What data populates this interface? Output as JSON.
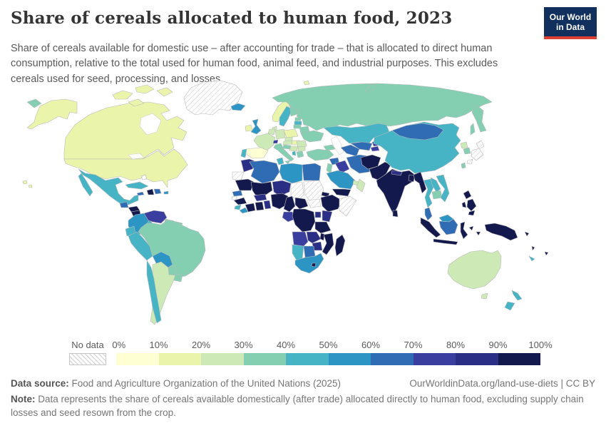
{
  "header": {
    "title": "Share of cereals allocated to human food, 2023",
    "subtitle": "Share of cereals available for domestic use – after accounting for trade – that is allocated to direct human consumption, relative to the total used for human food, animal feed, and industrial purposes. This excludes cereals used for seed, processing, and losses.",
    "logo": {
      "line1": "Our World",
      "line2": "in Data",
      "bg_color": "#12305e",
      "accent_color": "#dc3f34"
    }
  },
  "chart_data": {
    "type": "heatmap",
    "subtype": "choropleth-world-map",
    "title": "Share of cereals allocated to human food",
    "year": "2023",
    "unit": "%",
    "legend": {
      "no_data_label": "No data",
      "tick_labels": [
        "0%",
        "10%",
        "20%",
        "30%",
        "40%",
        "50%",
        "60%",
        "70%",
        "80%",
        "90%",
        "100%"
      ],
      "bucket_ranges": [
        "0-10%",
        "10-20%",
        "20-30%",
        "30-40%",
        "40-50%",
        "50-60%",
        "60-70%",
        "70-80%",
        "80-90%",
        "90-100%"
      ],
      "bucket_colors": [
        "#feffd3",
        "#eaf5ab",
        "#cdeab6",
        "#84cfb2",
        "#46b4c5",
        "#2d95c4",
        "#2f6cb3",
        "#3a3f9f",
        "#2a2e85",
        "#13194d"
      ],
      "no_data_pattern_color": "#d2d2d2"
    },
    "countries": {
      "canada": 1,
      "arctic-islands": 1,
      "alaska": 1,
      "usa": 1,
      "hawaii": 1,
      "greenland": "nd",
      "mexico": 4,
      "guatemala": 6,
      "honduras": 9,
      "nicaragua": 9,
      "costa-rica": 4,
      "panama": 4,
      "cuba": 4,
      "jamaica": 6,
      "haiti": 9,
      "dominican-republic": 6,
      "puerto-rico": 5,
      "bahamas": "nd",
      "colombia": 5,
      "venezuela": 7,
      "guyana": 3,
      "suriname": 5,
      "french-guiana": 3,
      "ecuador": 4,
      "peru": 4,
      "brazil": 3,
      "bolivia": 5,
      "paraguay": 3,
      "chile": 4,
      "argentina": 2,
      "uruguay": 3,
      "iceland": 5,
      "ireland": 1,
      "uk": 5,
      "norway": 1,
      "svalbard": 1,
      "sweden": 4,
      "finland": 3,
      "denmark": 2,
      "estonia": 3,
      "latvia": 4,
      "lithuania": 3,
      "poland": 1,
      "germany": 2,
      "benelux": 2,
      "france": 2,
      "spain": 0,
      "portugal": 4,
      "switzerland": 7,
      "czechia": 2,
      "austria": 2,
      "hungary": 1,
      "italy": 3,
      "sicily": 3,
      "slovenia-croatia": 3,
      "serbia-bosnia": 2,
      "albania": 4,
      "greece": 3,
      "bulgaria": 2,
      "romania": 2,
      "belarus": 3,
      "ukraine": 3,
      "russia": 3,
      "novaya-zemlya": 3,
      "kazakhstan": 4,
      "georgia-azerbaijan": 3,
      "turkmenistan": 6,
      "uzbekistan": 6,
      "kyrgyzstan": 7,
      "tajikistan": 7,
      "turkey": 3,
      "syria": 6,
      "israel-jordan": 3,
      "iraq": 7,
      "iran": 6,
      "saudi-arabia": 5,
      "uae": 2,
      "oman": 2,
      "yemen": 9,
      "afghanistan": 9,
      "pakistan": 9,
      "india": 9,
      "nepal": 8,
      "bangladesh": 9,
      "sri-lanka": 9,
      "china": 4,
      "mongolia": 6,
      "north-korea": 2,
      "south-korea": 3,
      "japan": "nd",
      "taiwan": 3,
      "myanmar": 9,
      "thailand": 4,
      "laos": 4,
      "cambodia": 3,
      "vietnam": 4,
      "malaysia": 6,
      "sumatra": 9,
      "java": 9,
      "borneo-malaysia": 5,
      "borneo-indonesia": 6,
      "sulawesi": 9,
      "maluku": 9,
      "new-guinea": 9,
      "philippines": 9,
      "solomon-islands": 9,
      "vanuatu": 9,
      "fiji": 9,
      "new-caledonia": 4,
      "australia": 2,
      "tasmania": 2,
      "new-zealand": 4,
      "morocco": 8,
      "western-sahara": "nd",
      "algeria": 6,
      "tunisia": 4,
      "libya": 5,
      "egypt": 6,
      "mauritania": 9,
      "mali": 9,
      "niger": 8,
      "chad": "nd",
      "sudan": "nd",
      "south-sudan": "nd",
      "eritrea": 9,
      "ethiopia": 9,
      "somalia": "nd",
      "senegal": 6,
      "guinea-bissau": "nd",
      "guinea": 9,
      "sierra-leone": 4,
      "liberia": 5,
      "ivory-coast": 9,
      "ghana": 9,
      "togo-benin": 8,
      "burkina-faso": 8,
      "nigeria": 9,
      "cameroon": 9,
      "central-african-republic": 9,
      "gabon-congo": 7,
      "drc": 9,
      "uganda": 8,
      "kenya": 8,
      "tanzania": 9,
      "angola": 7,
      "zambia": 8,
      "malawi": 9,
      "mozambique": 9,
      "zimbabwe": 8,
      "botswana": 6,
      "namibia": 4,
      "south-africa": 5,
      "lesotho": 9,
      "madagascar": 9
    }
  },
  "footer": {
    "source_label": "Data source:",
    "source_text": "Food and Agriculture Organization of the United Nations (2025)",
    "link_text": "OurWorldinData.org/land-use-diets | CC BY",
    "note_label": "Note:",
    "note_text": "Data represents the share of cereals available domestically (after trade) allocated directly to human food, excluding supply chain losses and seed resown from the crop."
  }
}
